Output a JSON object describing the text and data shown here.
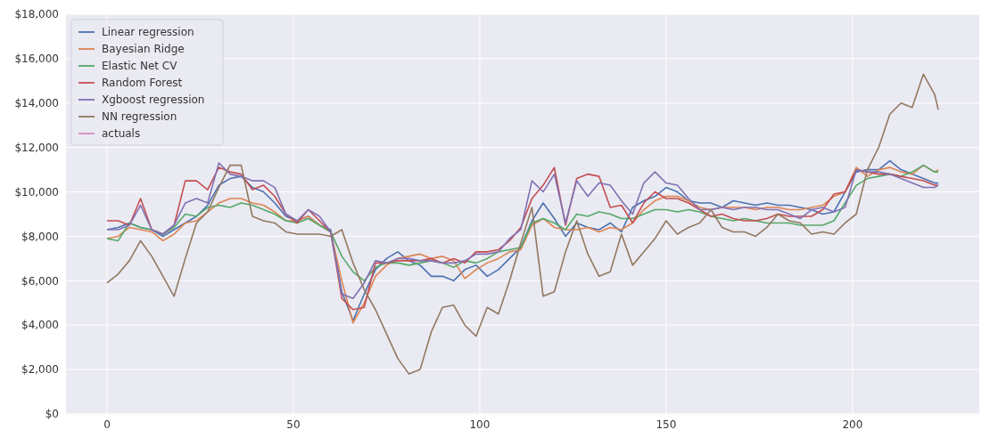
{
  "chart_data": {
    "type": "line",
    "x": [
      0,
      3,
      6,
      9,
      12,
      15,
      18,
      21,
      24,
      27,
      30,
      33,
      36,
      39,
      42,
      45,
      48,
      51,
      54,
      57,
      60,
      63,
      66,
      69,
      72,
      75,
      78,
      81,
      84,
      87,
      90,
      93,
      96,
      99,
      102,
      105,
      108,
      111,
      114,
      117,
      120,
      123,
      126,
      129,
      132,
      135,
      138,
      141,
      144,
      147,
      150,
      153,
      156,
      159,
      162,
      165,
      168,
      171,
      174,
      177,
      180,
      183,
      186,
      189,
      192,
      195,
      198,
      201,
      204,
      207,
      210,
      213,
      216,
      219,
      222,
      223
    ],
    "series": [
      {
        "name": "Linear regression",
        "color": "#4c72b0",
        "values": [
          8300,
          8400,
          8600,
          8400,
          8300,
          8000,
          8300,
          8600,
          8900,
          9400,
          10300,
          10600,
          10700,
          10200,
          10000,
          9500,
          8900,
          8700,
          8900,
          8500,
          8300,
          5500,
          4200,
          5400,
          6500,
          7000,
          7300,
          6900,
          6700,
          6200,
          6200,
          6000,
          6500,
          6700,
          6200,
          6500,
          7000,
          7500,
          8700,
          9500,
          8800,
          8000,
          8600,
          8400,
          8300,
          8600,
          8200,
          9300,
          9600,
          9800,
          10200,
          10000,
          9600,
          9500,
          9500,
          9300,
          9600,
          9500,
          9400,
          9500,
          9400,
          9400,
          9300,
          9200,
          9000,
          9100,
          10000,
          10900,
          11000,
          11000,
          11400,
          11000,
          10800,
          10600,
          10400,
          10400
        ]
      },
      {
        "name": "Bayesian Ridge",
        "color": "#dd8452",
        "values": [
          7900,
          8000,
          8400,
          8300,
          8200,
          7800,
          8100,
          8600,
          8700,
          9100,
          9500,
          9700,
          9700,
          9500,
          9400,
          9100,
          8700,
          8700,
          8900,
          8500,
          8200,
          6000,
          4100,
          5000,
          6200,
          6700,
          7000,
          7100,
          7200,
          7000,
          7100,
          6900,
          6100,
          6500,
          6800,
          7000,
          7300,
          7400,
          8500,
          8800,
          8400,
          8300,
          8300,
          8400,
          8200,
          8400,
          8300,
          8600,
          9200,
          9600,
          9800,
          9800,
          9600,
          9300,
          9200,
          9300,
          9300,
          9300,
          9200,
          9300,
          9300,
          9200,
          9200,
          9300,
          9400,
          9800,
          10000,
          11100,
          10700,
          11000,
          11100,
          10900,
          10800,
          11200,
          10900,
          11000
        ]
      },
      {
        "name": "Elastic Net CV",
        "color": "#55a868",
        "values": [
          7900,
          7800,
          8600,
          8400,
          8300,
          8100,
          8400,
          9000,
          8900,
          9300,
          9400,
          9300,
          9500,
          9400,
          9200,
          9000,
          8700,
          8600,
          8800,
          8500,
          8200,
          7100,
          6400,
          6000,
          6600,
          6800,
          6800,
          6700,
          6800,
          6900,
          6800,
          6600,
          6900,
          6800,
          7000,
          7300,
          7400,
          7500,
          8600,
          8800,
          8600,
          8300,
          9000,
          8900,
          9100,
          9000,
          8800,
          8800,
          9000,
          9200,
          9200,
          9100,
          9200,
          9100,
          8900,
          8800,
          8700,
          8800,
          8700,
          8600,
          8600,
          8600,
          8500,
          8500,
          8500,
          8700,
          9500,
          10300,
          10600,
          10700,
          10800,
          10700,
          10900,
          11200,
          10900,
          10900
        ]
      },
      {
        "name": "Random Forest",
        "color": "#c44e52",
        "values": [
          8700,
          8700,
          8500,
          9700,
          8300,
          8100,
          8500,
          10500,
          10500,
          10100,
          11100,
          10900,
          10800,
          10100,
          10300,
          9800,
          9000,
          8600,
          9200,
          8700,
          8200,
          5200,
          4700,
          4800,
          6800,
          6800,
          6900,
          6900,
          6900,
          7000,
          6800,
          7000,
          6800,
          7300,
          7300,
          7400,
          7800,
          8400,
          9700,
          10300,
          11100,
          8500,
          10600,
          10800,
          10700,
          9300,
          9400,
          8600,
          9500,
          10000,
          9700,
          9700,
          9500,
          9200,
          8900,
          9000,
          8800,
          8700,
          8700,
          8800,
          9000,
          8900,
          8900,
          8900,
          9200,
          9900,
          10000,
          11000,
          10900,
          10800,
          10800,
          10700,
          10600,
          10500,
          10300,
          10300
        ]
      },
      {
        "name": "Xgboost regression",
        "color": "#8172b3",
        "values": [
          8300,
          8300,
          8500,
          9400,
          8300,
          8100,
          8500,
          9500,
          9700,
          9500,
          11300,
          10800,
          10700,
          10500,
          10500,
          10200,
          9000,
          8700,
          9200,
          8900,
          8200,
          5400,
          5200,
          5900,
          6900,
          6800,
          7000,
          7000,
          6900,
          6900,
          6800,
          6800,
          6900,
          7200,
          7200,
          7300,
          7900,
          8300,
          10500,
          10000,
          10800,
          8600,
          10500,
          9800,
          10400,
          10300,
          9600,
          9000,
          10400,
          10900,
          10400,
          10300,
          9700,
          9200,
          9200,
          9300,
          9200,
          9300,
          9300,
          9200,
          9200,
          9000,
          8800,
          9200,
          9300,
          9100,
          9300,
          11000,
          10900,
          10900,
          10800,
          10600,
          10400,
          10200,
          10200,
          10300
        ]
      },
      {
        "name": "NN regression",
        "color": "#937860",
        "values": [
          5900,
          6300,
          6900,
          7800,
          7100,
          6200,
          5300,
          7000,
          8600,
          9100,
          10200,
          11200,
          11200,
          8900,
          8700,
          8600,
          8200,
          8100,
          8100,
          8100,
          8000,
          8300,
          6800,
          5600,
          4700,
          3600,
          2500,
          1800,
          2000,
          3700,
          4800,
          4900,
          4000,
          3500,
          4800,
          4500,
          6000,
          7700,
          9300,
          5300,
          5500,
          7300,
          8700,
          7200,
          6200,
          6400,
          8100,
          6700,
          7300,
          7900,
          8700,
          8100,
          8400,
          8600,
          9200,
          8400,
          8200,
          8200,
          8000,
          8400,
          9000,
          8700,
          8600,
          8100,
          8200,
          8100,
          8600,
          9000,
          11000,
          12000,
          13500,
          14000,
          13800,
          15300,
          14400,
          13700
        ]
      },
      {
        "name": "actuals",
        "color": "#da8bc3",
        "values": [
          null,
          null,
          null,
          null,
          null,
          null,
          null,
          null,
          null,
          null,
          null,
          null,
          null,
          null,
          null,
          null,
          null,
          null,
          null,
          null,
          null,
          null,
          null,
          null,
          null,
          null,
          null,
          null,
          null,
          null,
          null,
          null,
          null,
          null,
          null,
          null,
          null,
          null,
          null,
          null,
          null,
          null,
          null,
          null,
          null,
          null,
          null,
          null,
          null,
          null,
          null,
          null,
          null,
          null,
          null,
          null,
          null,
          null,
          null,
          null,
          null,
          null,
          null,
          null,
          null,
          null,
          null,
          null,
          null,
          null,
          null,
          null,
          null,
          null,
          null,
          null
        ]
      }
    ],
    "xlim": [
      -11,
      234
    ],
    "xticks": [
      0,
      50,
      100,
      150,
      200
    ],
    "ylim": [
      0,
      18000
    ],
    "yticks": [
      {
        "value": 0,
        "label": "$0"
      },
      {
        "value": 2000,
        "label": "$2,000"
      },
      {
        "value": 4000,
        "label": "$4,000"
      },
      {
        "value": 6000,
        "label": "$6,000"
      },
      {
        "value": 8000,
        "label": "$8,000"
      },
      {
        "value": 10000,
        "label": "$10,000"
      },
      {
        "value": 12000,
        "label": "$12,000"
      },
      {
        "value": 14000,
        "label": "$14,000"
      },
      {
        "value": 16000,
        "label": "$16,000"
      },
      {
        "value": 18000,
        "label": "$18,000"
      }
    ],
    "grid": true,
    "legend": "top left",
    "line_style": "solid"
  }
}
